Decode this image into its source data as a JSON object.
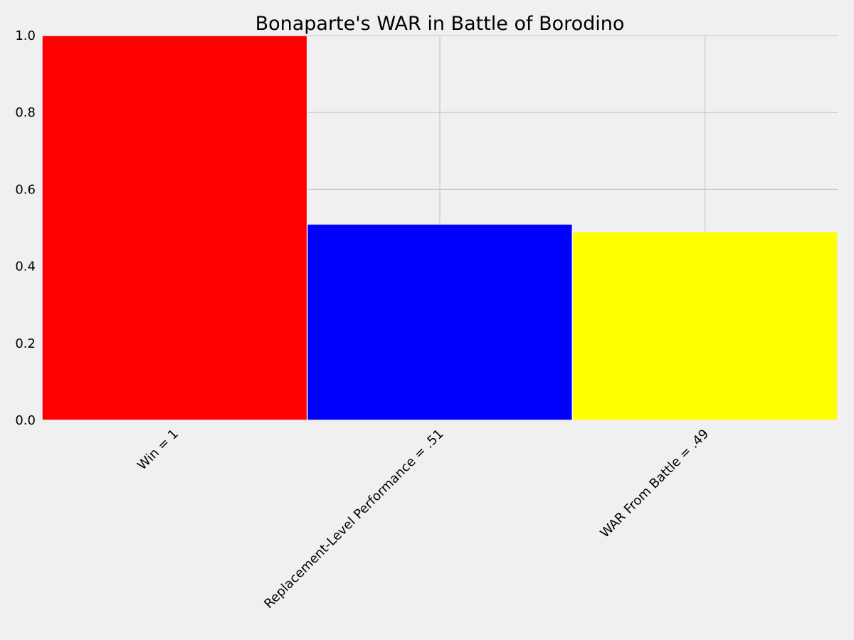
{
  "chart_data": {
    "type": "bar",
    "title": "Bonaparte's WAR in Battle of Borodino",
    "xlabel": "",
    "ylabel": "",
    "categories": [
      "Win = 1",
      "Replacement-Level Performance = .51",
      "WAR From Battle = .49"
    ],
    "values": [
      1.0,
      0.51,
      0.49
    ],
    "colors": [
      "#ff0000",
      "#0000ff",
      "#ffff00"
    ],
    "ylim": [
      0.0,
      1.0
    ],
    "yticks": [
      "0.0",
      "0.2",
      "0.4",
      "0.6",
      "0.8",
      "1.0"
    ],
    "grid": true,
    "style": "fivethirtyeight",
    "background": "#f0f0f0",
    "grid_color": "#cbcbcb"
  }
}
